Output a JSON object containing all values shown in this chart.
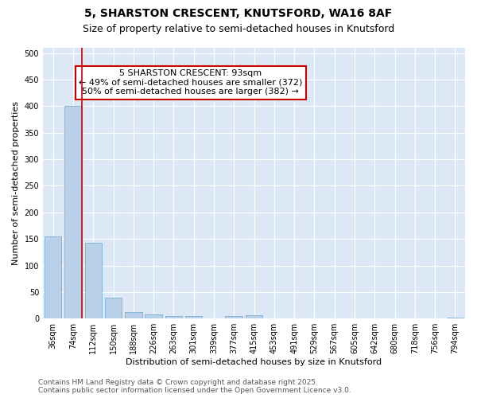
{
  "title_line1": "5, SHARSTON CRESCENT, KNUTSFORD, WA16 8AF",
  "title_line2": "Size of property relative to semi-detached houses in Knutsford",
  "xlabel": "Distribution of semi-detached houses by size in Knutsford",
  "ylabel": "Number of semi-detached properties",
  "categories": [
    "36sqm",
    "74sqm",
    "112sqm",
    "150sqm",
    "188sqm",
    "226sqm",
    "263sqm",
    "301sqm",
    "339sqm",
    "377sqm",
    "415sqm",
    "453sqm",
    "491sqm",
    "529sqm",
    "567sqm",
    "605sqm",
    "642sqm",
    "680sqm",
    "718sqm",
    "756sqm",
    "794sqm"
  ],
  "values": [
    155,
    400,
    142,
    40,
    12,
    8,
    5,
    5,
    0,
    5,
    7,
    0,
    0,
    0,
    0,
    0,
    0,
    0,
    0,
    0,
    2
  ],
  "bar_color": "#b8d0e8",
  "bar_edge_color": "#7aafd4",
  "vline_x_idx": 1,
  "vline_color": "#cc0000",
  "annotation_text": "5 SHARSTON CRESCENT: 93sqm\n← 49% of semi-detached houses are smaller (372)\n50% of semi-detached houses are larger (382) →",
  "annotation_box_facecolor": "#ffffff",
  "annotation_box_edgecolor": "#cc0000",
  "ylim": [
    0,
    510
  ],
  "yticks": [
    0,
    50,
    100,
    150,
    200,
    250,
    300,
    350,
    400,
    450,
    500
  ],
  "fig_bg_color": "#ffffff",
  "plot_bg_color": "#dce8f5",
  "grid_color": "#ffffff",
  "footer": "Contains HM Land Registry data © Crown copyright and database right 2025.\nContains public sector information licensed under the Open Government Licence v3.0.",
  "title_fontsize": 10,
  "subtitle_fontsize": 9,
  "axis_label_fontsize": 8,
  "tick_fontsize": 7,
  "annotation_fontsize": 8,
  "footer_fontsize": 6.5
}
